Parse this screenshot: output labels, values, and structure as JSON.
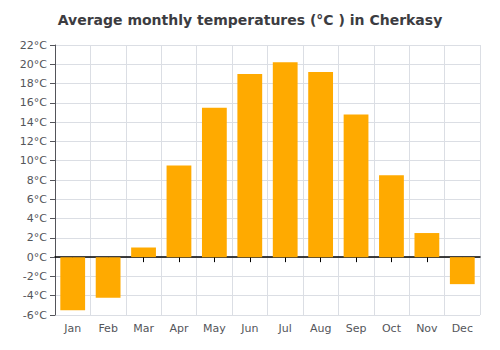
{
  "chart_data": {
    "type": "bar",
    "title": "Average monthly temperatures (°C ) in Cherkasy",
    "categories": [
      "Jan",
      "Feb",
      "Mar",
      "Apr",
      "May",
      "Jun",
      "Jul",
      "Aug",
      "Sep",
      "Oct",
      "Nov",
      "Dec"
    ],
    "values": [
      -5.5,
      -4.2,
      1.0,
      9.5,
      15.5,
      19.0,
      20.2,
      19.2,
      14.8,
      8.5,
      2.5,
      -2.8
    ],
    "color": "#FFAA00",
    "ylim": [
      -6,
      22
    ],
    "yticks": [
      {
        "value": -6,
        "label": "-6°C"
      },
      {
        "value": -4,
        "label": "-4°C"
      },
      {
        "value": -2,
        "label": "-2°C"
      },
      {
        "value": 0,
        "label": "0°C"
      },
      {
        "value": 2,
        "label": "2°C"
      },
      {
        "value": 4,
        "label": "4°C"
      },
      {
        "value": 6,
        "label": "6°C"
      },
      {
        "value": 8,
        "label": "8°C"
      },
      {
        "value": 10,
        "label": "10°C"
      },
      {
        "value": 12,
        "label": "12°C"
      },
      {
        "value": 14,
        "label": "14°C"
      },
      {
        "value": 16,
        "label": "16°C"
      },
      {
        "value": 18,
        "label": "18°C"
      },
      {
        "value": 20,
        "label": "20°C"
      },
      {
        "value": 22,
        "label": "22°C"
      }
    ],
    "grid": true
  }
}
